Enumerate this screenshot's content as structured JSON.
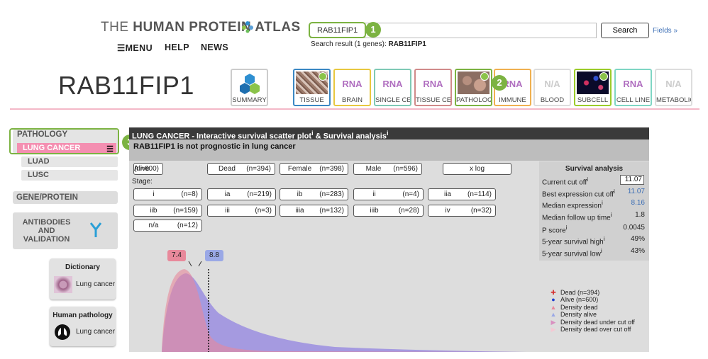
{
  "header": {
    "logo_thin": "THE",
    "logo_bold": "HUMAN PROTEIN ATLAS",
    "nav": [
      {
        "label": "MENU",
        "icon": "hamburger-icon"
      },
      {
        "label": "HELP"
      },
      {
        "label": "NEWS"
      }
    ],
    "search_value": "RAB11FIP1",
    "search_button": "Search",
    "fields_link": "Fields »",
    "search_result_prefix": "Search result (1 genes): ",
    "search_result_gene": "RAB11FIP1"
  },
  "badges": [
    "1",
    "2",
    "3"
  ],
  "gene": "RAB11FIP1",
  "tiles": [
    {
      "label": "SUMMARY",
      "kind": "summary",
      "border": "#cccccc"
    },
    {
      "label": "TISSUE",
      "kind": "tissue",
      "border": "#3b88c4",
      "dot": true
    },
    {
      "label": "BRAIN",
      "kind": "rna",
      "top": "RNA",
      "border": "#e8c840"
    },
    {
      "label": "SINGLE CELL",
      "kind": "rna",
      "top": "RNA",
      "border": "#7fc9b5"
    },
    {
      "label": "TISSUE CELL",
      "kind": "rna",
      "top": "RNA",
      "border": "#d08a8a"
    },
    {
      "label": "PATHOLOGY",
      "kind": "pathology",
      "border": "#7cb342",
      "dot": true
    },
    {
      "label": "IMMUNE",
      "kind": "rna",
      "top": "RNA",
      "border": "#f0b050"
    },
    {
      "label": "BLOOD",
      "kind": "na",
      "top": "N/A",
      "border": "#dddddd"
    },
    {
      "label": "SUBCELL",
      "kind": "subcell",
      "border": "#9ccc2a",
      "dot": true
    },
    {
      "label": "CELL LINE",
      "kind": "rna",
      "top": "RNA",
      "border": "#7fd6c4"
    },
    {
      "label": "METABOLIC",
      "kind": "na",
      "top": "N/A",
      "border": "#dddddd"
    }
  ],
  "sidebar": {
    "pathology": "PATHOLOGY",
    "lung_cancer": "LUNG CANCER",
    "luad": "LUAD",
    "lusc": "LUSC",
    "gene_protein": "GENE/PROTEIN",
    "antibodies": [
      "ANTIBODIES",
      "AND",
      "VALIDATION"
    ],
    "dictionary_title": "Dictionary",
    "dictionary_item": "Lung cancer",
    "human_pathology_title": "Human pathology",
    "human_pathology_item": "Lung cancer"
  },
  "panel": {
    "title": "LUNG CANCER - Interactive survival scatter plot",
    "title_sup": "i",
    "title_and": " & Survival analysis",
    "title_sup2": "i",
    "subtitle": "RAB11FIP1 is not prognostic in lung cancer",
    "filters_row1": [
      {
        "label": "Alive",
        "n": "(n=600)"
      },
      {
        "label": "Dead",
        "n": "(n=394)"
      },
      {
        "label": "Female",
        "n": "(n=398)"
      },
      {
        "label": "Male",
        "n": "(n=596)"
      },
      {
        "label": "x log",
        "n": ""
      }
    ],
    "stage_label": "Stage:",
    "stages": [
      {
        "label": "i",
        "n": "(n=8)"
      },
      {
        "label": "ia",
        "n": "(n=219)"
      },
      {
        "label": "ib",
        "n": "(n=283)"
      },
      {
        "label": "ii",
        "n": "(n=4)"
      },
      {
        "label": "iia",
        "n": "(n=114)"
      },
      {
        "label": "iib",
        "n": "(n=159)"
      },
      {
        "label": "iii",
        "n": "(n=3)"
      },
      {
        "label": "iiia",
        "n": "(n=132)"
      },
      {
        "label": "iiib",
        "n": "(n=28)"
      },
      {
        "label": "iv",
        "n": "(n=32)"
      },
      {
        "label": "n/a",
        "n": "(n=12)"
      }
    ]
  },
  "survival": {
    "title": "Survival analysis",
    "current_cutoff_label": "Current cut off",
    "current_cutoff_value": "11.07",
    "best_cutoff_label": "Best expression cut off",
    "best_cutoff_value": "11.07",
    "median_expr_label": "Median expression",
    "median_expr_value": "8.16",
    "median_follow_label": "Median follow up time",
    "median_follow_value": "1.8",
    "pscore_label": "P score",
    "pscore_value": "0.0045",
    "surv_high_label": "5-year survival high",
    "surv_high_value": "49%",
    "surv_low_label": "5-year survival low",
    "surv_low_value": "43%",
    "info": "i"
  },
  "chart_data": {
    "type": "area",
    "density_dead_peak_label": "7.4",
    "density_alive_peak_label": "8.8",
    "legend": [
      {
        "label": "Dead (n=394)",
        "marker": "cross",
        "color": "#d32f2f"
      },
      {
        "label": "Alive (n=600)",
        "marker": "circle",
        "color": "#1e40d0"
      },
      {
        "label": "Density dead",
        "marker": "triangle",
        "color": "#e8899b"
      },
      {
        "label": "Density alive",
        "marker": "triangle",
        "color": "#9aa8e6"
      },
      {
        "label": "Density dead under cut off",
        "marker": "triangle-right",
        "color": "#d98fc0"
      },
      {
        "label": "Density dead over cut off",
        "marker": "triangle-right",
        "color": "#f5c8d4"
      }
    ],
    "colors": {
      "dead": "#e8899b",
      "alive": "#9b8ee0"
    }
  }
}
